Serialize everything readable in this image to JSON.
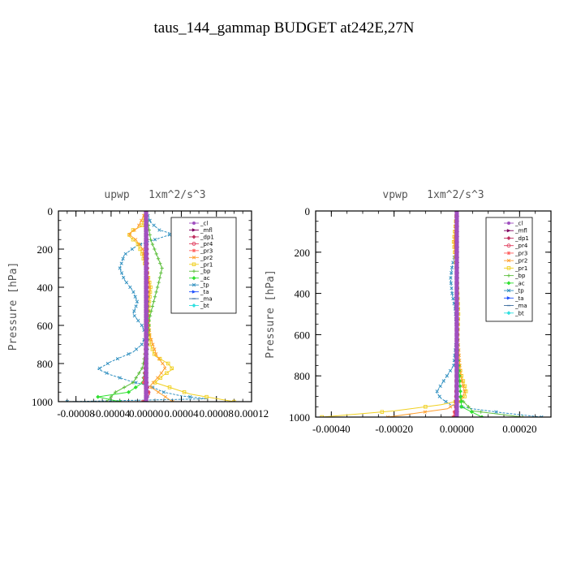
{
  "figure": {
    "title": "taus_144_gammap  BUDGET at242E,27N"
  },
  "legend_entries": [
    {
      "label": "_cl",
      "color": "#a050c0",
      "marker": "circle"
    },
    {
      "label": "_mfl",
      "color": "#800060",
      "marker": "triangle"
    },
    {
      "label": "_dp1",
      "color": "#c03060",
      "marker": "diamond"
    },
    {
      "label": "_pr4",
      "color": "#e04060",
      "marker": "circle-open"
    },
    {
      "label": "_pr3",
      "color": "#ff6060",
      "marker": "star"
    },
    {
      "label": "_pr2",
      "color": "#ffa030",
      "marker": "x"
    },
    {
      "label": "_pr1",
      "color": "#f0d020",
      "marker": "square-open"
    },
    {
      "label": "_bp",
      "color": "#60c040",
      "marker": "plus"
    },
    {
      "label": "_ac",
      "color": "#30e030",
      "marker": "diamond"
    },
    {
      "label": "_tp",
      "color": "#3090c0",
      "marker": "x"
    },
    {
      "label": "_ta",
      "color": "#2050ff",
      "marker": "triangle"
    },
    {
      "label": "_ma",
      "color": "#4070a0",
      "marker": "dash"
    },
    {
      "label": "_bt",
      "color": "#30e0e0",
      "marker": "diamond"
    }
  ],
  "chart_data": [
    {
      "type": "line",
      "title": "upwp   1xm^2/s^3",
      "ylabel": "Pressure [hPa]",
      "xlabel": "",
      "xlim": [
        -0.0001,
        0.00012
      ],
      "ylim": [
        1000,
        0
      ],
      "x_ticks": [
        "-0.00008",
        "-0.00004",
        "0.00000",
        "0.00004",
        "0.00008",
        "0.00012"
      ],
      "x_tick_values": [
        -8e-05,
        -4e-05,
        0.0,
        4e-05,
        8e-05,
        0.00012
      ],
      "y_ticks": [
        "0",
        "200",
        "400",
        "600",
        "800",
        "1000"
      ],
      "y_tick_values": [
        0,
        200,
        400,
        600,
        800,
        1000
      ],
      "series": [
        {
          "name": "_tp",
          "color": "#3090c0",
          "x": [
            0.0,
            5e-06,
            1.5e-05,
            3e-05,
            1e-05,
            -1e-05,
            -2.5e-05,
            -3e-05,
            -2.5e-05,
            -1.5e-05,
            -1e-05,
            -1.5e-05,
            -5e-06,
            0.0,
            -5e-06,
            -1.5e-05,
            -4e-05,
            -5.5e-05,
            -4e-05,
            -2e-05,
            5e-06,
            2e-05,
            4e-05,
            7e-05,
            -9e-05
          ],
          "y": [
            0,
            60,
            100,
            120,
            150,
            180,
            230,
            300,
            360,
            420,
            480,
            540,
            600,
            650,
            700,
            740,
            790,
            830,
            860,
            890,
            920,
            950,
            970,
            985,
            1000
          ]
        },
        {
          "name": "_pr1",
          "color": "#f0d020",
          "x": [
            0.0,
            -5e-06,
            -1.5e-05,
            -2e-05,
            -1e-05,
            -5e-06,
            0.0,
            5e-06,
            3e-06,
            2e-06,
            5e-06,
            1e-05,
            2.5e-05,
            3e-05,
            2e-05,
            1e-05,
            5e-05,
            0.0001
          ],
          "y": [
            0,
            80,
            100,
            130,
            170,
            220,
            300,
            400,
            500,
            600,
            700,
            760,
            800,
            830,
            860,
            900,
            960,
            1000
          ]
        },
        {
          "name": "_pr2",
          "color": "#ffa030",
          "x": [
            0.0,
            -1e-05,
            -2e-05,
            -1.2e-05,
            -4e-06,
            0.0,
            4e-06,
            2e-06,
            4e-06,
            1.2e-05,
            2.2e-05,
            1.4e-05,
            4e-06,
            3e-05
          ],
          "y": [
            0,
            90,
            120,
            150,
            200,
            300,
            400,
            500,
            650,
            760,
            820,
            870,
            920,
            1000
          ]
        },
        {
          "name": "_bp",
          "color": "#60c040",
          "x": [
            0.0,
            5e-06,
            1.2e-05,
            1.8e-05,
            1.4e-05,
            1e-05,
            6e-06,
            2e-06,
            0.0,
            -4e-06,
            -1.5e-05,
            -3.5e-05,
            -4.5e-05
          ],
          "y": [
            0,
            150,
            230,
            300,
            380,
            450,
            520,
            600,
            700,
            820,
            900,
            950,
            1000
          ]
        },
        {
          "name": "_ac",
          "color": "#30e030",
          "x": [
            0.0,
            0.0,
            3e-06,
            0.0,
            -4e-06,
            -2e-05,
            -5.5e-05,
            -3e-05
          ],
          "y": [
            0,
            300,
            600,
            800,
            900,
            950,
            975,
            1000
          ]
        },
        {
          "name": "_ta",
          "color": "#2050ff",
          "x": [
            0.0,
            0.0,
            2e-06,
            0.0,
            -2e-06,
            4e-06,
            -2e-06
          ],
          "y": [
            0,
            300,
            600,
            800,
            900,
            960,
            1000
          ]
        },
        {
          "name": "_pr3",
          "color": "#ff6060",
          "x": [
            0.0,
            0.0,
            2e-06,
            0.0,
            -3e-06,
            4e-06,
            -4e-06
          ],
          "y": [
            0,
            300,
            600,
            800,
            900,
            960,
            1000
          ]
        },
        {
          "name": "_pr4",
          "color": "#e04060",
          "x": [
            0.0,
            1e-06,
            0.0,
            -1e-06,
            2e-06,
            -2e-06
          ],
          "y": [
            0,
            300,
            600,
            850,
            950,
            1000
          ]
        },
        {
          "name": "_dp1",
          "color": "#c03060",
          "x": [
            0.0,
            1e-06,
            0.0,
            0.0,
            1e-06,
            0.0
          ],
          "y": [
            0,
            300,
            600,
            850,
            950,
            1000
          ]
        },
        {
          "name": "_mfl",
          "color": "#800060",
          "x": [
            0.0,
            0.0,
            0.0,
            0.0,
            0.0
          ],
          "y": [
            0,
            250,
            500,
            750,
            1000
          ]
        },
        {
          "name": "_cl",
          "color": "#a050c0",
          "x": [
            0.0,
            0.0,
            0.0
          ],
          "y": [
            0,
            500,
            1000
          ]
        }
      ]
    },
    {
      "type": "line",
      "title": "vpwp   1xm^2/s^3",
      "ylabel": "Pressure [hPa]",
      "xlabel": "",
      "xlim": [
        -0.00045,
        0.0003
      ],
      "ylim": [
        1000,
        0
      ],
      "x_ticks": [
        "-0.00040",
        "-0.00020",
        "0.00000",
        "0.00020"
      ],
      "x_tick_values": [
        -0.0004,
        -0.0002,
        0.0,
        0.0002
      ],
      "y_ticks": [
        "0",
        "200",
        "400",
        "600",
        "800",
        "1000"
      ],
      "y_tick_values": [
        0,
        200,
        400,
        600,
        800,
        1000
      ],
      "series": [
        {
          "name": "_tp",
          "color": "#3090c0",
          "x": [
            0.0,
            -5e-06,
            -1.5e-05,
            -2e-05,
            -1.5e-05,
            -5e-06,
            0.0,
            -1e-05,
            -4e-05,
            -6.5e-05,
            -5e-05,
            -2e-05,
            5e-05,
            0.00015,
            0.00027
          ],
          "y": [
            0,
            200,
            270,
            330,
            400,
            480,
            600,
            750,
            820,
            880,
            910,
            940,
            960,
            980,
            1000
          ]
        },
        {
          "name": "_pr1",
          "color": "#f0d020",
          "x": [
            0.0,
            -1e-05,
            0.0,
            5e-06,
            0.0,
            1.5e-05,
            3e-05,
            2.5e-05,
            1e-05,
            -5e-05,
            -0.0002,
            -0.00043
          ],
          "y": [
            0,
            150,
            300,
            500,
            700,
            800,
            870,
            900,
            920,
            940,
            970,
            1000
          ]
        },
        {
          "name": "_pr2",
          "color": "#ffa030",
          "x": [
            0.0,
            -8e-06,
            0.0,
            3e-06,
            1.2e-05,
            2.5e-05,
            1e-05,
            -3e-05,
            -0.00022
          ],
          "y": [
            0,
            150,
            300,
            600,
            800,
            880,
            920,
            960,
            1000
          ]
        },
        {
          "name": "_bp",
          "color": "#60c040",
          "x": [
            0.0,
            2e-06,
            0.0,
            5e-06,
            5e-05,
            0.00021
          ],
          "y": [
            0,
            300,
            700,
            900,
            970,
            1000
          ]
        },
        {
          "name": "_ac",
          "color": "#30e030",
          "x": [
            0.0,
            3e-06,
            1.5e-05,
            8e-05
          ],
          "y": [
            0,
            700,
            950,
            1000
          ]
        },
        {
          "name": "_pr3",
          "color": "#ff6060",
          "x": [
            0.0,
            2e-06,
            -4e-06,
            -1.2e-05
          ],
          "y": [
            0,
            600,
            950,
            1000
          ]
        },
        {
          "name": "_pr4",
          "color": "#e04060",
          "x": [
            0.0,
            1e-06,
            -2e-06,
            -8e-06
          ],
          "y": [
            0,
            600,
            950,
            1000
          ]
        },
        {
          "name": "_dp1",
          "color": "#c03060",
          "x": [
            0.0,
            0.0,
            0.0
          ],
          "y": [
            0,
            500,
            1000
          ]
        },
        {
          "name": "_mfl",
          "color": "#800060",
          "x": [
            0.0,
            0.0,
            0.0,
            0.0
          ],
          "y": [
            0,
            300,
            700,
            1000
          ]
        },
        {
          "name": "_cl",
          "color": "#a050c0",
          "x": [
            0.0,
            0.0
          ],
          "y": [
            0,
            1000
          ]
        }
      ]
    }
  ]
}
